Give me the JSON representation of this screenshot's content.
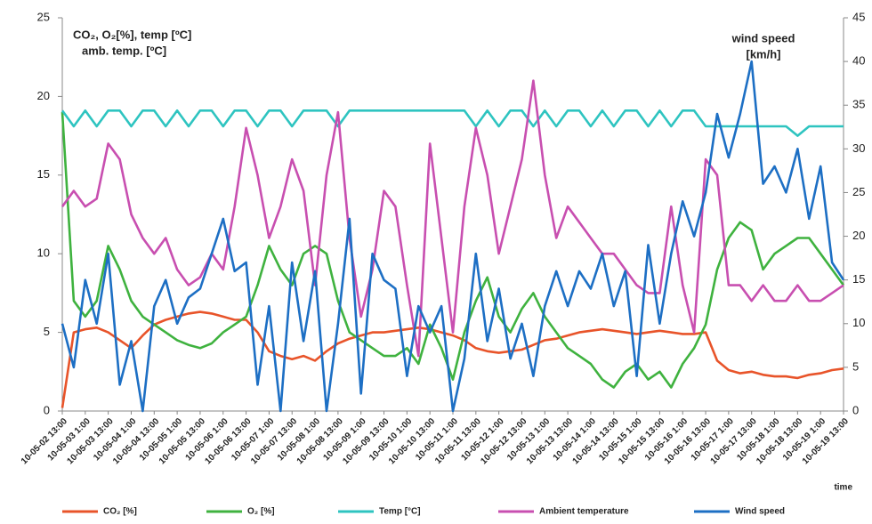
{
  "chart_data": {
    "type": "line",
    "annotations": [
      "CO₂, O₂[%], temp [ºC]",
      "amb. temp. [ºC]",
      "wind speed",
      "[km/h]",
      "time"
    ],
    "categories": [
      "10-05-02 13:00",
      null,
      "10-05-03 1:00",
      null,
      "10-05-03 13:00",
      null,
      "10-05-04 1:00",
      null,
      "10-05-04 13:00",
      null,
      "10-05-05 1:00",
      null,
      "10-05-05 13:00",
      null,
      "10-05-06 1:00",
      null,
      "10-05-06 13:00",
      null,
      "10-05-07 1:00",
      null,
      "10-05-07 13:00",
      null,
      "10-05-08 1:00",
      null,
      "10-05-08 13:00",
      null,
      "10-05-09 1:00",
      null,
      "10-05-09 13:00",
      null,
      "10-05-10 1:00",
      null,
      "10-05-10 13:00",
      null,
      "10-05-11 1:00",
      null,
      "10-05-11 13:00",
      null,
      "10-05-12 1:00",
      null,
      "10-05-12 13:00",
      null,
      "10-05-13 1:00",
      null,
      "10-05-13 13:00",
      null,
      "10-05-14 1:00",
      null,
      "10-05-14 13:00",
      null,
      "10-05-15 1:00",
      null,
      "10-05-15 13:00",
      null,
      "10-05-16 1:00",
      null,
      "10-05-16 13:00",
      null,
      "10-05-17 1:00",
      null,
      "10-05-17 13:00",
      null,
      "10-05-18 1:00",
      null,
      "10-05-18 13:00",
      null,
      "10-05-19 1:00",
      null,
      "10-05-19 13:00"
    ],
    "series": [
      {
        "name": "CO₂ [%]",
        "color": "#e8542a",
        "values": [
          0.2,
          5,
          5.2,
          5.3,
          5,
          4.5,
          4,
          4.8,
          5.5,
          5.8,
          6,
          6.2,
          6.3,
          6.2,
          6,
          5.8,
          5.8,
          5,
          3.8,
          3.5,
          3.3,
          3.5,
          3.2,
          3.8,
          4.3,
          4.6,
          4.8,
          5,
          5,
          5.1,
          5.2,
          5.3,
          5.2,
          5,
          4.8,
          4.5,
          4,
          3.8,
          3.7,
          3.8,
          3.9,
          4.2,
          4.5,
          4.6,
          4.8,
          5,
          5.1,
          5.2,
          5.1,
          5,
          4.9,
          5,
          5.1,
          5,
          4.9,
          4.9,
          5,
          3.2,
          2.6,
          2.4,
          2.5,
          2.3,
          2.2,
          2.2,
          2.1,
          2.3,
          2.4,
          2.6,
          2.7
        ]
      },
      {
        "name": "O₂ [%]",
        "color": "#3fb23f",
        "values": [
          19,
          7,
          6,
          7,
          10.5,
          9,
          7,
          6,
          5.5,
          5,
          4.5,
          4.2,
          4,
          4.3,
          5,
          5.5,
          6,
          8,
          10.5,
          9,
          8,
          10,
          10.5,
          10,
          7,
          5,
          4.5,
          4,
          3.5,
          3.5,
          4,
          3,
          5.5,
          4,
          2,
          5,
          7,
          8.5,
          6,
          5,
          6.5,
          7.5,
          6,
          5,
          4,
          3.5,
          3,
          2,
          1.5,
          2.5,
          3,
          2,
          2.5,
          1.5,
          3,
          4,
          5.5,
          9,
          11,
          12,
          11.5,
          9,
          10,
          10.5,
          11,
          11,
          10,
          9,
          8
        ]
      },
      {
        "name": "Temp [°C]",
        "color": "#2ec4c0",
        "values": [
          19.1,
          18.1,
          19.1,
          18.1,
          19.1,
          19.1,
          18.1,
          19.1,
          19.1,
          18.1,
          19.1,
          18.1,
          19.1,
          19.1,
          18.1,
          19.1,
          19.1,
          18.1,
          19.1,
          19.1,
          18.1,
          19.1,
          19.1,
          19.1,
          18.1,
          19.1,
          19.1,
          19.1,
          19.1,
          19.1,
          19.1,
          19.1,
          19.1,
          19.1,
          19.1,
          19.1,
          18.1,
          19.1,
          18.1,
          19.1,
          19.1,
          18.1,
          19.1,
          18.1,
          19.1,
          19.1,
          18.1,
          19.1,
          18.1,
          19.1,
          19.1,
          18.1,
          19.1,
          18.1,
          19.1,
          19.1,
          18.1,
          18.1,
          18.1,
          18.1,
          18.1,
          18.1,
          18.1,
          18.1,
          17.5,
          18.1,
          18.1,
          18.1,
          18.1
        ]
      },
      {
        "name": "Ambient temperature",
        "color": "#c84fb0",
        "values": [
          13,
          14,
          13,
          13.5,
          17,
          16,
          12.5,
          11,
          10,
          11,
          9,
          8,
          8.5,
          10,
          9,
          13,
          18,
          15,
          11,
          13,
          16,
          14,
          8,
          15,
          19,
          11,
          6,
          9,
          14,
          13,
          8,
          3.5,
          17,
          11,
          5,
          13,
          18,
          15,
          10,
          13,
          16,
          21,
          15,
          11,
          13,
          12,
          11,
          10,
          10,
          9,
          8,
          7.5,
          7.5,
          13,
          8,
          5,
          16,
          15,
          8,
          8,
          7,
          8,
          7,
          7,
          8,
          7,
          7,
          7.5,
          8
        ]
      },
      {
        "name": "Wind speed",
        "color": "#1d6fc4",
        "axis": "y2",
        "values": [
          10,
          5,
          15,
          10,
          18,
          3,
          8,
          0,
          12,
          15,
          10,
          13,
          14,
          18,
          22,
          16,
          17,
          3,
          12,
          0,
          17,
          8,
          16,
          0,
          10,
          22,
          2,
          18,
          15,
          14,
          4,
          12,
          9,
          12,
          0,
          6,
          18,
          8,
          14,
          6,
          10,
          4,
          12,
          16,
          12,
          16,
          14,
          18,
          12,
          16,
          4,
          19,
          10,
          18,
          24,
          20,
          25,
          34,
          29,
          34,
          40,
          26,
          28,
          25,
          30,
          22,
          28,
          17,
          15
        ]
      }
    ],
    "ylim": [
      0,
      25
    ],
    "yticks": [
      0,
      5,
      10,
      15,
      20,
      25
    ],
    "y2lim": [
      0,
      45
    ],
    "y2ticks": [
      0,
      5,
      10,
      15,
      20,
      25,
      30,
      35,
      40,
      45
    ]
  }
}
